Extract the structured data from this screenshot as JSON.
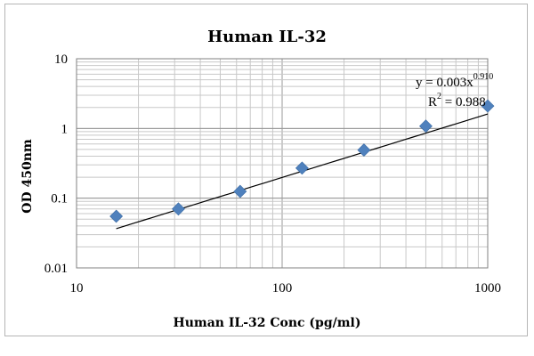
{
  "chart_data": {
    "type": "scatter",
    "title": "Human IL-32",
    "xlabel": "Human IL-32 Conc (pg/ml)",
    "ylabel": "OD 450nm",
    "xscale": "log",
    "yscale": "log",
    "xlim": [
      10,
      1000
    ],
    "ylim": [
      0.01,
      10
    ],
    "x_ticks": [
      "10",
      "100",
      "1000"
    ],
    "y_ticks": [
      "10",
      "1",
      "0.1",
      "0.01"
    ],
    "grid": true,
    "legend": "none",
    "marker": "diamond",
    "marker_color": "#4f81bd",
    "points": [
      {
        "x": 15.6,
        "y": 0.055
      },
      {
        "x": 31.3,
        "y": 0.07
      },
      {
        "x": 62.5,
        "y": 0.125
      },
      {
        "x": 125,
        "y": 0.27
      },
      {
        "x": 250,
        "y": 0.49
      },
      {
        "x": 500,
        "y": 1.08
      },
      {
        "x": 1000,
        "y": 2.1
      }
    ],
    "trendline": {
      "type": "power",
      "coefficient": 0.003,
      "exponent": 0.91,
      "x_range": [
        15.6,
        1000
      ],
      "color": "#000000"
    },
    "annotations": {
      "equation_prefix": "y = 0.003x",
      "equation_exponent": "0.910",
      "r2_prefix": "R",
      "r2_sup": "2",
      "r2_value": " = 0.988"
    }
  }
}
